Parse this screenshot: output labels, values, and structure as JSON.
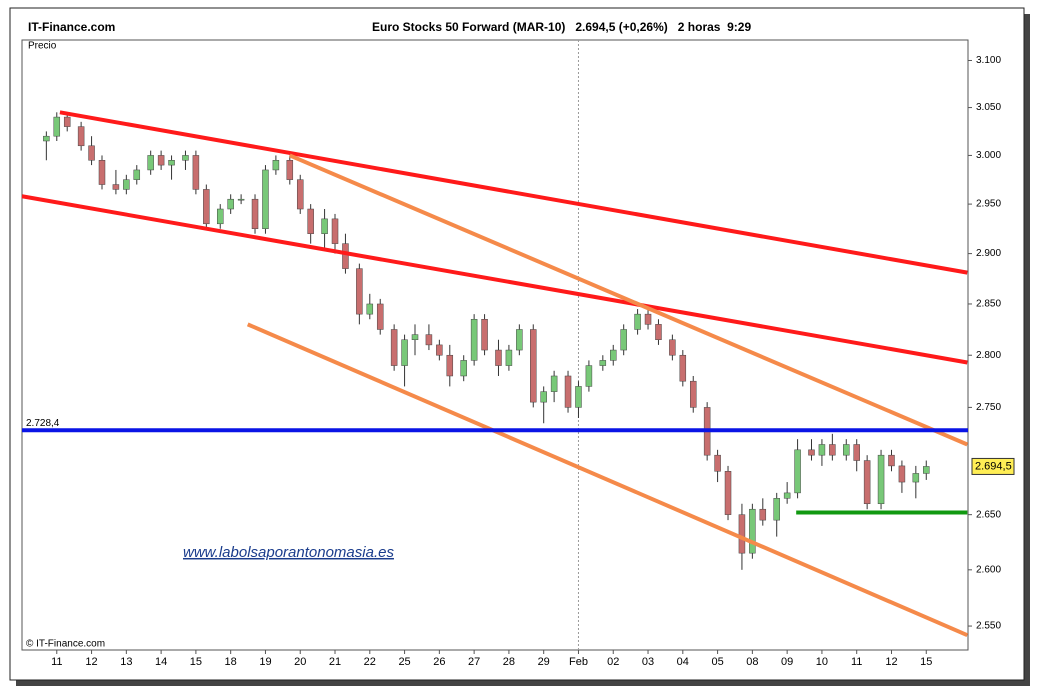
{
  "chart_data": {
    "type": "candlestick",
    "source": "IT-Finance.com",
    "title": "Euro Stocks 50 Forward (MAR-10)   2.694,5 (+0,26%)   2 horas  9:29",
    "y_label": "Precio",
    "copyright": "© IT-Finance.com",
    "watermark": "www.labolsaporantonomasia.es",
    "log_scale": true,
    "xlim": [
      -1,
      26.2
    ],
    "ylim": [
      2529,
      3122
    ],
    "xticks": [
      {
        "value": 0,
        "label": "11"
      },
      {
        "value": 1,
        "label": "12"
      },
      {
        "value": 2,
        "label": "13"
      },
      {
        "value": 3,
        "label": "14"
      },
      {
        "value": 4,
        "label": "15"
      },
      {
        "value": 5,
        "label": "18"
      },
      {
        "value": 6,
        "label": "19"
      },
      {
        "value": 7,
        "label": "20"
      },
      {
        "value": 8,
        "label": "21"
      },
      {
        "value": 9,
        "label": "22"
      },
      {
        "value": 10,
        "label": "25"
      },
      {
        "value": 11,
        "label": "26"
      },
      {
        "value": 12,
        "label": "27"
      },
      {
        "value": 13,
        "label": "28"
      },
      {
        "value": 14,
        "label": "29"
      },
      {
        "value": 15,
        "label": "Feb"
      },
      {
        "value": 16,
        "label": "02"
      },
      {
        "value": 17,
        "label": "03"
      },
      {
        "value": 18,
        "label": "04"
      },
      {
        "value": 19,
        "label": "05"
      },
      {
        "value": 20,
        "label": "08"
      },
      {
        "value": 21,
        "label": "09"
      },
      {
        "value": 22,
        "label": "10"
      },
      {
        "value": 23,
        "label": "11"
      },
      {
        "value": 24,
        "label": "12"
      },
      {
        "value": 25,
        "label": "15"
      }
    ],
    "month_separator_tick": 15,
    "yticks": [
      {
        "value": 2550,
        "label": "2.550"
      },
      {
        "value": 2600,
        "label": "2.600"
      },
      {
        "value": 2650,
        "label": "2.650"
      },
      {
        "value": 2750,
        "label": "2.750"
      },
      {
        "value": 2800,
        "label": "2.800"
      },
      {
        "value": 2850,
        "label": "2.850"
      },
      {
        "value": 2900,
        "label": "2.900"
      },
      {
        "value": 2950,
        "label": "2.950"
      },
      {
        "value": 3000,
        "label": "3.000"
      },
      {
        "value": 3050,
        "label": "3.050"
      },
      {
        "value": 3100,
        "label": "3.100"
      }
    ],
    "up_color": "#78c878",
    "down_color": "#c86e6e",
    "x": [
      -0.3,
      0,
      0.3,
      0.7,
      1,
      1.3,
      1.7,
      2,
      2.3,
      2.7,
      3,
      3.3,
      3.7,
      4,
      4.3,
      4.7,
      5,
      5.3,
      5.7,
      6,
      6.3,
      6.7,
      7,
      7.3,
      7.7,
      8,
      8.3,
      8.7,
      9,
      9.3,
      9.7,
      10,
      10.3,
      10.7,
      11,
      11.3,
      11.7,
      12,
      12.3,
      12.7,
      13,
      13.3,
      13.7,
      14,
      14.3,
      14.7,
      15,
      15.3,
      15.7,
      16,
      16.3,
      16.7,
      17,
      17.3,
      17.7,
      18,
      18.3,
      18.7,
      19,
      19.3,
      19.7,
      20,
      20.3,
      20.7,
      21,
      21.3,
      21.7,
      22,
      22.3,
      22.7,
      23,
      23.3,
      23.7,
      24,
      24.3,
      24.7,
      25
    ],
    "open": [
      3015,
      3020,
      3040,
      3030,
      3010,
      2995,
      2970,
      2965,
      2975,
      2985,
      3000,
      2990,
      2995,
      3000,
      2965,
      2930,
      2945,
      2955,
      2955,
      2925,
      2985,
      2995,
      2975,
      2945,
      2920,
      2935,
      2910,
      2885,
      2840,
      2850,
      2825,
      2790,
      2815,
      2820,
      2810,
      2800,
      2780,
      2795,
      2835,
      2805,
      2790,
      2805,
      2825,
      2755,
      2765,
      2780,
      2750,
      2770,
      2790,
      2795,
      2805,
      2825,
      2840,
      2830,
      2815,
      2800,
      2775,
      2750,
      2705,
      2690,
      2650,
      2615,
      2655,
      2645,
      2665,
      2670,
      2710,
      2705,
      2715,
      2705,
      2715,
      2700,
      2660,
      2705,
      2695,
      2680,
      2688
    ],
    "high": [
      3025,
      3045,
      3045,
      3035,
      3020,
      3000,
      2985,
      2980,
      2990,
      3005,
      3005,
      3000,
      3005,
      3005,
      2970,
      2950,
      2960,
      2960,
      2960,
      2990,
      3000,
      3000,
      2980,
      2950,
      2945,
      2940,
      2920,
      2890,
      2860,
      2855,
      2830,
      2820,
      2830,
      2830,
      2815,
      2810,
      2800,
      2840,
      2840,
      2815,
      2810,
      2830,
      2830,
      2770,
      2785,
      2785,
      2775,
      2795,
      2800,
      2810,
      2830,
      2845,
      2845,
      2835,
      2820,
      2805,
      2780,
      2755,
      2710,
      2695,
      2660,
      2660,
      2665,
      2670,
      2680,
      2720,
      2720,
      2720,
      2725,
      2720,
      2720,
      2705,
      2710,
      2710,
      2700,
      2695,
      2700
    ],
    "low": [
      2995,
      3015,
      3025,
      3005,
      2990,
      2965,
      2960,
      2960,
      2970,
      2980,
      2985,
      2975,
      2985,
      2960,
      2925,
      2925,
      2940,
      2950,
      2920,
      2920,
      2980,
      2970,
      2940,
      2910,
      2905,
      2900,
      2880,
      2830,
      2835,
      2820,
      2785,
      2770,
      2800,
      2805,
      2795,
      2770,
      2775,
      2790,
      2800,
      2780,
      2785,
      2800,
      2750,
      2735,
      2755,
      2745,
      2740,
      2765,
      2785,
      2790,
      2800,
      2820,
      2825,
      2810,
      2795,
      2770,
      2745,
      2700,
      2680,
      2645,
      2600,
      2610,
      2640,
      2630,
      2660,
      2665,
      2700,
      2695,
      2700,
      2700,
      2690,
      2655,
      2655,
      2690,
      2670,
      2665,
      2682
    ],
    "close": [
      3020,
      3040,
      3030,
      3010,
      2995,
      2970,
      2965,
      2975,
      2985,
      3000,
      2990,
      2995,
      3000,
      2965,
      2930,
      2945,
      2955,
      2955,
      2925,
      2985,
      2995,
      2975,
      2945,
      2920,
      2935,
      2910,
      2885,
      2840,
      2850,
      2825,
      2790,
      2815,
      2820,
      2810,
      2800,
      2780,
      2795,
      2835,
      2805,
      2790,
      2805,
      2825,
      2755,
      2765,
      2780,
      2750,
      2770,
      2790,
      2795,
      2805,
      2825,
      2840,
      2830,
      2815,
      2800,
      2775,
      2750,
      2705,
      2690,
      2650,
      2615,
      2655,
      2645,
      2665,
      2670,
      2710,
      2705,
      2715,
      2705,
      2715,
      2700,
      2660,
      2705,
      2695,
      2680,
      2688,
      2694.5
    ],
    "trend_lines": [
      {
        "color": "#ff1a1a",
        "x": [
          0.09,
          26.18
        ],
        "y": [
          3045,
          2881
        ]
      },
      {
        "color": "#ff1a1a",
        "x": [
          -1,
          26.18
        ],
        "y": [
          2958,
          2793
        ]
      },
      {
        "color": "#f58a4a",
        "x": [
          6.7,
          26.18
        ],
        "y": [
          3000,
          2715
        ]
      },
      {
        "color": "#f58a4a",
        "x": [
          5.49,
          26.18
        ],
        "y": [
          2830,
          2542
        ]
      },
      {
        "color": "#119911",
        "x": [
          21.26,
          26.18
        ],
        "y": [
          2652,
          2652
        ]
      }
    ],
    "level_line": {
      "value": 2728.4,
      "label": "2.728,4",
      "color": "#0a14e6"
    },
    "last_price": {
      "value": 2694.5,
      "label": "2.694,5",
      "color": "#ffee55"
    }
  }
}
